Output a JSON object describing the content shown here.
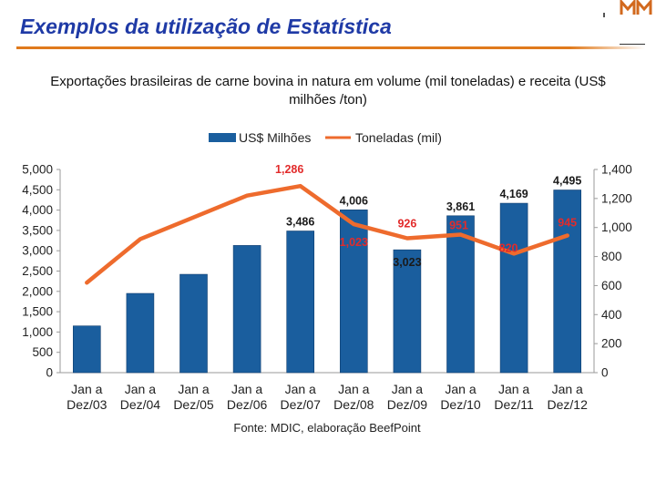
{
  "slide": {
    "title": "Exemplos da utilização de Estatística",
    "subtitle": "Exportações brasileiras de carne bovina in natura em volume (mil toneladas) e receita (US$ milhões /ton)",
    "accent_color": "#1f3aa6",
    "rule_color": "#e07a1c"
  },
  "chart_data": {
    "type": "bar",
    "categories": [
      [
        "Jan a",
        "Dez/03"
      ],
      [
        "Jan a",
        "Dez/04"
      ],
      [
        "Jan a",
        "Dez/05"
      ],
      [
        "Jan a",
        "Dez/06"
      ],
      [
        "Jan a",
        "Dez/07"
      ],
      [
        "Jan a",
        "Dez/08"
      ],
      [
        "Jan a",
        "Dez/09"
      ],
      [
        "Jan a",
        "Dez/10"
      ],
      [
        "Jan a",
        "Dez/11"
      ],
      [
        "Jan a",
        "Dez/12"
      ]
    ],
    "series": [
      {
        "name": "US$ Milhões",
        "type": "bar",
        "axis": "left",
        "color": "#1a5e9e",
        "values": [
          1150,
          1950,
          2420,
          3130,
          3486,
          4006,
          3023,
          3861,
          4169,
          4495
        ],
        "labels": [
          "",
          "",
          "",
          "",
          "3,486",
          "4,006",
          "3,023",
          "3,861",
          "4,169",
          "4,495"
        ]
      },
      {
        "name": "Toneladas (mil)",
        "type": "line",
        "axis": "right",
        "color": "#ee6b2d",
        "values": [
          620,
          920,
          1070,
          1220,
          1286,
          1023,
          926,
          951,
          820,
          945
        ],
        "labels": [
          "",
          "",
          "",
          "",
          "1,286",
          "1,023",
          "926",
          "951",
          "820",
          "945"
        ]
      }
    ],
    "y_left": {
      "min": 0,
      "max": 5000,
      "step": 500,
      "tick_labels": [
        "0",
        "500",
        "1,000",
        "1,500",
        "2,000",
        "2,500",
        "3,000",
        "3,500",
        "4,000",
        "4,500",
        "5,000"
      ]
    },
    "y_right": {
      "min": 0,
      "max": 1400,
      "step": 200,
      "tick_labels": [
        "0",
        "200",
        "400",
        "600",
        "800",
        "1,000",
        "1,200",
        "1,400"
      ]
    },
    "legend": "top-center",
    "source": "Fonte: MDIC, elaboração BeefPoint",
    "label_color": "#e22b2b"
  }
}
